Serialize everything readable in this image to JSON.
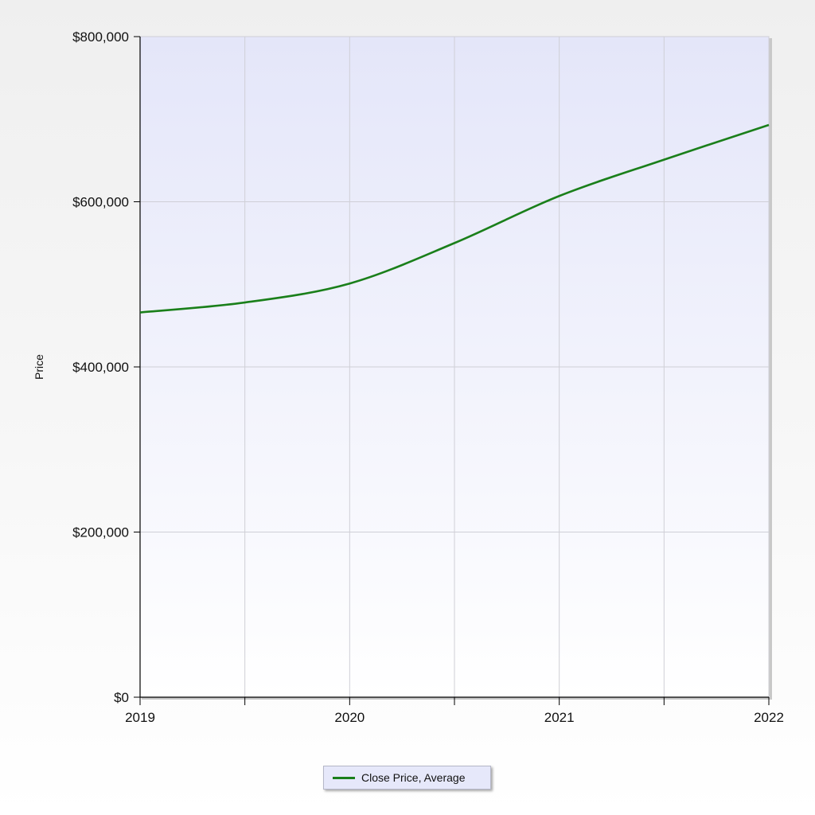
{
  "chart_data": {
    "type": "line",
    "xlabel": "",
    "ylabel": "Price",
    "ylim": [
      0,
      800000
    ],
    "xlim": [
      2019,
      2022
    ],
    "y_ticks": [
      "$0",
      "$200,000",
      "$400,000",
      "$600,000",
      "$800,000"
    ],
    "x_ticks": [
      "2019",
      "2020",
      "2021",
      "2022"
    ],
    "grid": true,
    "legend_position": "bottom-center",
    "series": [
      {
        "name": "Close Price, Average",
        "color": "#1a7f1a",
        "x": [
          2019,
          2019.5,
          2020,
          2020.5,
          2021,
          2021.5,
          2022
        ],
        "values": [
          466000,
          478000,
          501000,
          550000,
          607000,
          651000,
          693000
        ]
      }
    ]
  }
}
